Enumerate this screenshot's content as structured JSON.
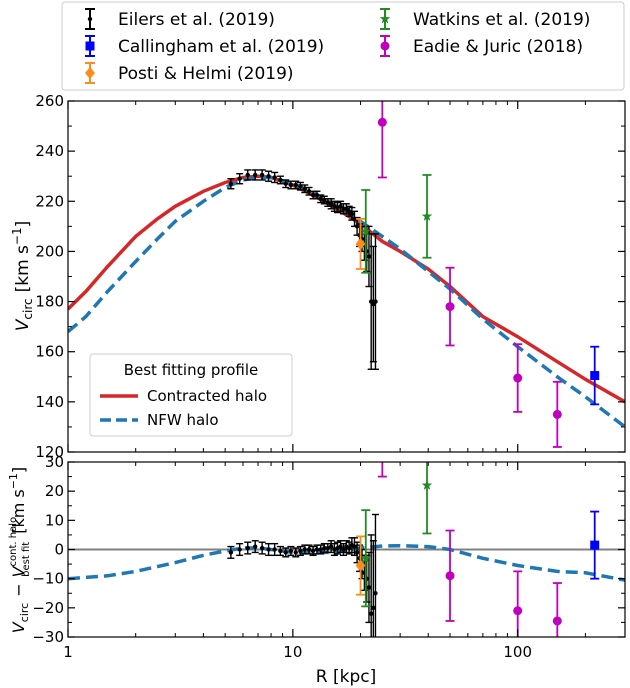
{
  "chart_data": [
    {
      "type": "line",
      "panel": "main",
      "xscale": "log",
      "xlim": [
        1,
        300
      ],
      "ylim": [
        120,
        260
      ],
      "ylabel_main": "V",
      "ylabel_sub": "circ",
      "ylabel_units": "[km s",
      "ylabel_exp": "−1",
      "ylabel_close": "]",
      "x_ticks": [
        1,
        10,
        100
      ],
      "x_ticklabels": [
        "1",
        "10",
        "100"
      ],
      "y_ticks": [
        120,
        140,
        160,
        180,
        200,
        220,
        240,
        260
      ],
      "y_ticklabels": [
        "120",
        "140",
        "160",
        "180",
        "200",
        "220",
        "240",
        "260"
      ],
      "legend_title": "Best fitting profile",
      "legend_placement": "lower-left",
      "series": [
        {
          "name": "Contracted halo",
          "color": "#d62728",
          "style": "solid",
          "x": [
            1,
            1.2,
            1.5,
            2,
            2.5,
            3,
            4,
            5,
            6,
            7,
            8,
            10,
            12,
            15,
            20,
            25,
            30,
            40,
            50,
            70,
            100,
            150,
            200,
            300
          ],
          "y": [
            177,
            184,
            194,
            206,
            213,
            218,
            224,
            227.5,
            229.5,
            230,
            229.5,
            226.5,
            223,
            218,
            211,
            204,
            200,
            193,
            186,
            174,
            166,
            156,
            149,
            140
          ]
        },
        {
          "name": "NFW halo",
          "color": "#1f77b4",
          "style": "dashed",
          "x": [
            1,
            1.2,
            1.5,
            2,
            2.5,
            3,
            4,
            5,
            6,
            7,
            8,
            10,
            12,
            15,
            20,
            25,
            30,
            40,
            50,
            70,
            100,
            150,
            200,
            300
          ],
          "y": [
            168,
            174,
            184,
            196,
            205,
            212,
            220,
            225.5,
            228.5,
            229.5,
            229.5,
            227,
            224,
            219,
            212,
            206,
            201,
            192,
            185,
            173,
            162,
            150,
            142,
            130
          ]
        }
      ],
      "data_groups": [
        {
          "name": "Eilers et al. (2019)",
          "color": "#000000",
          "marker": "dot",
          "x": [
            5.3,
            5.8,
            6.3,
            6.8,
            7.3,
            7.8,
            8.3,
            8.8,
            9.3,
            9.8,
            10.3,
            10.8,
            11.3,
            11.8,
            12.3,
            12.8,
            13.3,
            13.8,
            14.3,
            14.8,
            15.3,
            15.8,
            16.3,
            16.8,
            17.3,
            17.8,
            18.3,
            18.8,
            19.3,
            19.8,
            20.3,
            20.8,
            21.3,
            21.8,
            22.3,
            22.8,
            23.3
          ],
          "y": [
            227,
            229,
            230.5,
            230.5,
            230.5,
            230,
            229.5,
            228.5,
            227,
            226.5,
            226.5,
            226,
            225,
            224,
            222.5,
            222.5,
            221,
            220.5,
            219.5,
            219,
            218,
            217.5,
            218,
            217,
            217,
            216,
            215,
            213,
            210,
            206.5,
            205,
            202.5,
            200,
            198,
            180,
            179,
            180
          ],
          "err": [
            2,
            2,
            2,
            2,
            2,
            2,
            2,
            1.5,
            1.5,
            1.5,
            1.5,
            1.5,
            1.5,
            1.5,
            1.5,
            1.5,
            1.5,
            1.5,
            1.5,
            2,
            2,
            2,
            2,
            2,
            2,
            2,
            2.5,
            3,
            3.5,
            4.5,
            5,
            6,
            8,
            12,
            27,
            23,
            27
          ]
        },
        {
          "name": "Callingham et al. (2019)",
          "color": "#0000ff",
          "marker": "square",
          "x": [
            220
          ],
          "y": [
            150.5
          ],
          "err": [
            11.5
          ]
        },
        {
          "name": "Posti & Helmi (2019)",
          "color": "#ff8c1a",
          "marker": "diamond",
          "x": [
            20
          ],
          "y": [
            203
          ],
          "err": [
            10
          ]
        },
        {
          "name": "Watkins et al. (2019)",
          "color": "#228b22",
          "marker": "star",
          "x": [
            21.1,
            39.5
          ],
          "y": [
            208,
            214
          ],
          "err": [
            16.5,
            16.5
          ]
        },
        {
          "name": "Eadie & Juric (2018)",
          "color": "#bf00bf",
          "marker": "circle",
          "x": [
            25,
            50,
            100,
            150
          ],
          "y": [
            251.5,
            178,
            149.5,
            135
          ],
          "err": [
            22,
            15.5,
            13.5,
            13
          ]
        }
      ]
    },
    {
      "type": "line",
      "panel": "residual",
      "xscale": "log",
      "xlim": [
        1,
        300
      ],
      "ylim": [
        -30,
        30
      ],
      "xlabel": "R [kpc]",
      "ylabel_a": "V",
      "ylabel_a_sub": "circ",
      "ylabel_minus": "−",
      "ylabel_b": "V",
      "ylabel_b_sup": "cont. halo",
      "ylabel_b_sub": "best fit",
      "ylabel_units": "[km s",
      "ylabel_exp": "−1",
      "ylabel_close": "]",
      "x_ticks": [
        1,
        10,
        100
      ],
      "x_ticklabels": [
        "1",
        "10",
        "100"
      ],
      "y_ticks": [
        -30,
        -20,
        -10,
        0,
        10,
        20,
        30
      ],
      "y_ticklabels": [
        "−30",
        "−20",
        "−10",
        "0",
        "10",
        "20",
        "30"
      ],
      "zero_line_color": "#808080",
      "series": [
        {
          "name": "NFW halo",
          "color": "#1f77b4",
          "style": "dashed",
          "x": [
            1,
            1.5,
            2,
            3,
            4,
            5,
            6,
            7,
            8,
            10,
            12,
            15,
            20,
            25,
            30,
            40,
            50,
            70,
            100,
            150,
            200,
            300
          ],
          "y": [
            -10,
            -9,
            -7.5,
            -4.5,
            -2,
            -0.5,
            0.5,
            0.5,
            0,
            -1,
            -1,
            -1,
            0.5,
            1.2,
            1.3,
            1,
            0,
            -3,
            -5.5,
            -7.5,
            -8,
            -10.5
          ]
        }
      ],
      "data_groups": [
        {
          "name": "Eilers et al. (2019)",
          "color": "#000000",
          "marker": "dot",
          "x": [
            5.3,
            5.8,
            6.3,
            6.8,
            7.3,
            7.8,
            8.3,
            8.8,
            9.3,
            9.8,
            10.3,
            10.8,
            11.3,
            11.8,
            12.3,
            12.8,
            13.3,
            13.8,
            14.3,
            14.8,
            15.3,
            15.8,
            16.3,
            16.8,
            17.3,
            17.8,
            18.3,
            18.8,
            19.3,
            19.8,
            20.3,
            20.8,
            21.3,
            21.8,
            22.3,
            22.8,
            23.3
          ],
          "y": [
            -1,
            0,
            0.5,
            1,
            0.5,
            0,
            0,
            -0.5,
            -1,
            -0.5,
            -1,
            -0.5,
            0,
            0,
            -0.5,
            0,
            0,
            0.5,
            0.5,
            1,
            0,
            0.5,
            1,
            0,
            1,
            0.5,
            1.5,
            1,
            -1,
            -3,
            -5,
            -8,
            -10,
            -13,
            -22,
            -20,
            -15
          ],
          "err": [
            2,
            2,
            2,
            2,
            2,
            2,
            2,
            1.5,
            1.5,
            1.5,
            1.5,
            1.5,
            1.5,
            1.5,
            1.5,
            1.5,
            1.5,
            1.5,
            1.5,
            2,
            2,
            2,
            2,
            2,
            2,
            2,
            2.5,
            3,
            3.5,
            4.5,
            5,
            6,
            8,
            12,
            27,
            23,
            27
          ]
        },
        {
          "name": "Callingham et al. (2019)",
          "color": "#0000ff",
          "marker": "square",
          "x": [
            220
          ],
          "y": [
            1.5
          ],
          "err": [
            11.5
          ]
        },
        {
          "name": "Posti & Helmi (2019)",
          "color": "#ff8c1a",
          "marker": "diamond",
          "x": [
            20
          ],
          "y": [
            -5.5
          ],
          "err": [
            10
          ]
        },
        {
          "name": "Watkins et al. (2019)",
          "color": "#228b22",
          "marker": "star",
          "x": [
            21.1,
            39.5
          ],
          "y": [
            -3,
            22
          ],
          "err": [
            16.5,
            16.5
          ]
        },
        {
          "name": "Eadie & Juric (2018)",
          "color": "#bf00bf",
          "marker": "circle",
          "x": [
            25,
            50,
            100,
            150
          ],
          "y": [
            47,
            -9,
            -21,
            -24.5
          ],
          "err": [
            22,
            15.5,
            13.5,
            13
          ]
        }
      ]
    }
  ],
  "top_legend": {
    "entries": [
      {
        "label": "Eilers et al. (2019)",
        "color": "#000000",
        "marker": "dot"
      },
      {
        "label": "Callingham et al. (2019)",
        "color": "#0000ff",
        "marker": "square"
      },
      {
        "label": "Posti & Helmi (2019)",
        "color": "#ff8c1a",
        "marker": "diamond"
      },
      {
        "label": "Watkins et al. (2019)",
        "color": "#228b22",
        "marker": "star"
      },
      {
        "label": "Eadie & Juric (2018)",
        "color": "#bf00bf",
        "marker": "circle"
      }
    ]
  }
}
